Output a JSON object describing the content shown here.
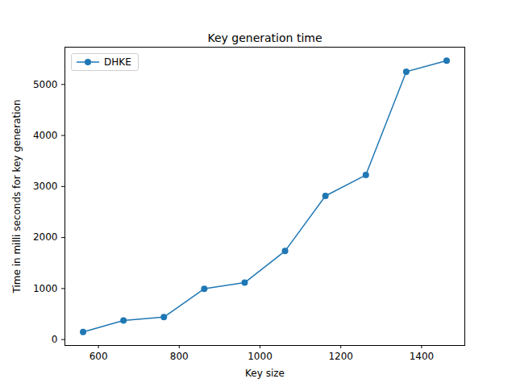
{
  "chart_data": {
    "type": "line",
    "title": "Key generation time",
    "x_label": "Key size",
    "y_label": "Time in milli seconds for key generation",
    "x": [
      562,
      662,
      762,
      862,
      962,
      1062,
      1162,
      1262,
      1362,
      1462
    ],
    "series": [
      {
        "name": "DHKE",
        "color": "#1f77b4",
        "marker": "circle",
        "line_style": "solid",
        "values": [
          150,
          375,
          440,
          995,
          1115,
          1735,
          2815,
          3225,
          5250,
          5465
        ]
      }
    ],
    "xlim": [
      517,
      1507
    ],
    "xticks": [
      600,
      800,
      1000,
      1200,
      1400
    ],
    "ylim": [
      -116,
      5731
    ],
    "yticks": [
      0,
      1000,
      2000,
      3000,
      4000,
      5000
    ],
    "grid": false,
    "legend": "upper left"
  }
}
